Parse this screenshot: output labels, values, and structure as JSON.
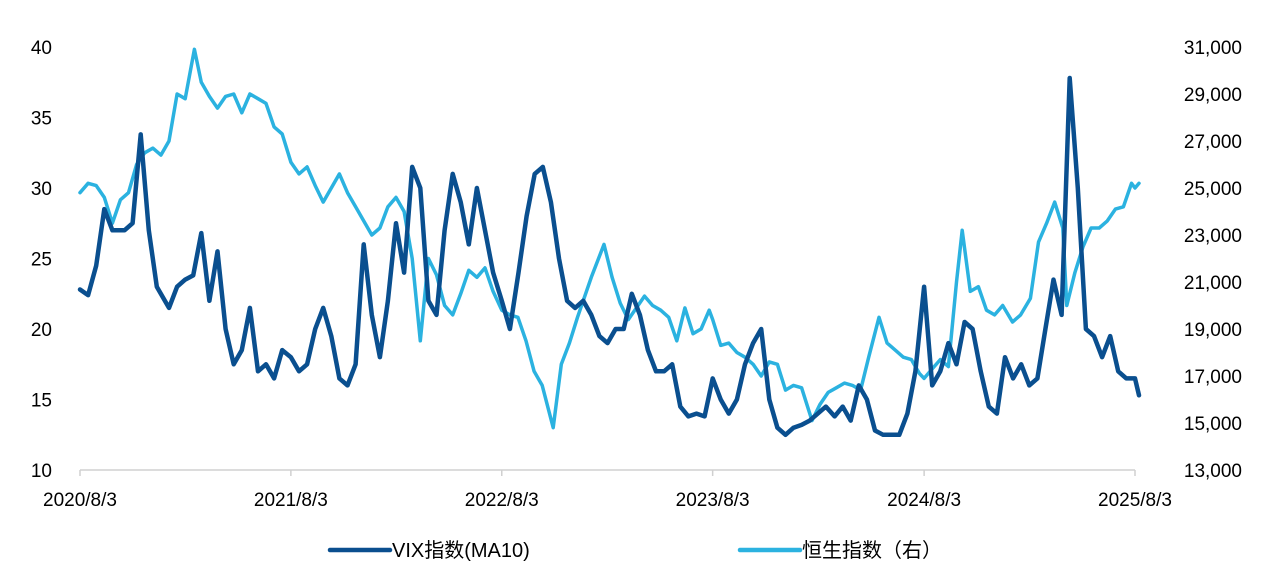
{
  "chart_data": {
    "type": "line",
    "x_tick_labels": [
      "2020/8/3",
      "2021/8/3",
      "2022/8/3",
      "2023/8/3",
      "2024/8/3",
      "2025/8/3"
    ],
    "y_left": {
      "range": [
        10,
        40
      ],
      "ticks": [
        "10",
        "15",
        "20",
        "25",
        "30",
        "35",
        "40"
      ]
    },
    "y_right": {
      "range": [
        13000,
        31000
      ],
      "ticks": [
        "13,000",
        "15,000",
        "17,000",
        "19,000",
        "21,000",
        "23,000",
        "25,000",
        "27,000",
        "29,000",
        "31,000"
      ]
    },
    "grid": false,
    "legend_position": "bottom",
    "series": [
      {
        "name": "VIX指数(MA10)",
        "axis": "left",
        "color": "#0a4f8f",
        "points": [
          [
            "2020/8/3",
            22.8
          ],
          [
            "2020/8/17",
            22.4
          ],
          [
            "2020/8/31",
            24.5
          ],
          [
            "2020/9/14",
            28.5
          ],
          [
            "2020/9/28",
            27.0
          ],
          [
            "2020/10/19",
            27.0
          ],
          [
            "2020/11/2",
            27.5
          ],
          [
            "2020/11/16",
            33.8
          ],
          [
            "2020/11/30",
            27.0
          ],
          [
            "2020/12/14",
            23.0
          ],
          [
            "2021/1/4",
            21.5
          ],
          [
            "2021/1/18",
            23.0
          ],
          [
            "2021/2/1",
            23.5
          ],
          [
            "2021/2/15",
            23.8
          ],
          [
            "2021/3/1",
            26.8
          ],
          [
            "2021/3/15",
            22.0
          ],
          [
            "2021/3/29",
            25.5
          ],
          [
            "2021/4/12",
            20.0
          ],
          [
            "2021/4/26",
            17.5
          ],
          [
            "2021/5/10",
            18.5
          ],
          [
            "2021/5/24",
            21.5
          ],
          [
            "2021/6/7",
            17.0
          ],
          [
            "2021/6/21",
            17.5
          ],
          [
            "2021/7/5",
            16.5
          ],
          [
            "2021/7/19",
            18.5
          ],
          [
            "2021/8/3",
            18.0
          ],
          [
            "2021/8/17",
            17.0
          ],
          [
            "2021/8/31",
            17.5
          ],
          [
            "2021/9/14",
            20.0
          ],
          [
            "2021/9/28",
            21.5
          ],
          [
            "2021/10/12",
            19.5
          ],
          [
            "2021/10/26",
            16.5
          ],
          [
            "2021/11/9",
            16.0
          ],
          [
            "2021/11/23",
            17.5
          ],
          [
            "2021/12/7",
            26.0
          ],
          [
            "2021/12/21",
            21.0
          ],
          [
            "2022/1/4",
            18.0
          ],
          [
            "2022/1/18",
            22.0
          ],
          [
            "2022/2/1",
            27.5
          ],
          [
            "2022/2/15",
            24.0
          ],
          [
            "2022/3/1",
            31.5
          ],
          [
            "2022/3/15",
            30.0
          ],
          [
            "2022/3/29",
            22.0
          ],
          [
            "2022/4/12",
            21.0
          ],
          [
            "2022/4/26",
            27.0
          ],
          [
            "2022/5/10",
            31.0
          ],
          [
            "2022/5/24",
            29.0
          ],
          [
            "2022/6/7",
            26.0
          ],
          [
            "2022/6/21",
            30.0
          ],
          [
            "2022/7/5",
            27.0
          ],
          [
            "2022/7/19",
            24.0
          ],
          [
            "2022/8/3",
            22.0
          ],
          [
            "2022/8/17",
            20.0
          ],
          [
            "2022/9/1",
            24.0
          ],
          [
            "2022/9/15",
            28.0
          ],
          [
            "2022/9/29",
            31.0
          ],
          [
            "2022/10/13",
            31.5
          ],
          [
            "2022/10/27",
            29.0
          ],
          [
            "2022/11/10",
            25.0
          ],
          [
            "2022/11/24",
            22.0
          ],
          [
            "2022/12/8",
            21.5
          ],
          [
            "2022/12/22",
            22.0
          ],
          [
            "2023/1/5",
            21.0
          ],
          [
            "2023/1/19",
            19.5
          ],
          [
            "2023/2/2",
            19.0
          ],
          [
            "2023/2/16",
            20.0
          ],
          [
            "2023/3/2",
            20.0
          ],
          [
            "2023/3/16",
            22.5
          ],
          [
            "2023/3/30",
            21.0
          ],
          [
            "2023/4/13",
            18.5
          ],
          [
            "2023/4/27",
            17.0
          ],
          [
            "2023/5/11",
            17.0
          ],
          [
            "2023/5/25",
            17.5
          ],
          [
            "2023/6/8",
            14.5
          ],
          [
            "2023/6/22",
            13.8
          ],
          [
            "2023/7/6",
            14.0
          ],
          [
            "2023/7/20",
            13.8
          ],
          [
            "2023/8/3",
            16.5
          ],
          [
            "2023/8/17",
            15.0
          ],
          [
            "2023/8/31",
            14.0
          ],
          [
            "2023/9/14",
            15.0
          ],
          [
            "2023/9/28",
            17.5
          ],
          [
            "2023/10/12",
            19.0
          ],
          [
            "2023/10/26",
            20.0
          ],
          [
            "2023/11/9",
            15.0
          ],
          [
            "2023/11/23",
            13.0
          ],
          [
            "2023/12/7",
            12.5
          ],
          [
            "2023/12/21",
            13.0
          ],
          [
            "2024/1/4",
            13.2
          ],
          [
            "2024/1/18",
            13.5
          ],
          [
            "2024/2/1",
            14.0
          ],
          [
            "2024/2/15",
            14.5
          ],
          [
            "2024/3/1",
            13.8
          ],
          [
            "2024/3/15",
            14.5
          ],
          [
            "2024/3/29",
            13.5
          ],
          [
            "2024/4/12",
            16.0
          ],
          [
            "2024/4/26",
            15.0
          ],
          [
            "2024/5/10",
            12.8
          ],
          [
            "2024/5/24",
            12.5
          ],
          [
            "2024/6/7",
            12.5
          ],
          [
            "2024/6/21",
            12.5
          ],
          [
            "2024/7/5",
            14.0
          ],
          [
            "2024/7/19",
            17.0
          ],
          [
            "2024/8/3",
            23.0
          ],
          [
            "2024/8/17",
            16.0
          ],
          [
            "2024/8/31",
            17.0
          ],
          [
            "2024/9/14",
            19.0
          ],
          [
            "2024/9/28",
            17.5
          ],
          [
            "2024/10/12",
            20.5
          ],
          [
            "2024/10/26",
            20.0
          ],
          [
            "2024/11/9",
            17.0
          ],
          [
            "2024/11/23",
            14.5
          ],
          [
            "2024/12/7",
            14.0
          ],
          [
            "2024/12/21",
            18.0
          ],
          [
            "2025/1/4",
            16.5
          ],
          [
            "2025/1/18",
            17.5
          ],
          [
            "2025/2/1",
            16.0
          ],
          [
            "2025/2/15",
            16.5
          ],
          [
            "2025/3/1",
            20.0
          ],
          [
            "2025/3/15",
            23.5
          ],
          [
            "2025/3/29",
            21.0
          ],
          [
            "2025/4/12",
            37.8
          ],
          [
            "2025/4/26",
            30.0
          ],
          [
            "2025/5/10",
            20.0
          ],
          [
            "2025/5/24",
            19.5
          ],
          [
            "2025/6/7",
            18.0
          ],
          [
            "2025/6/21",
            19.5
          ],
          [
            "2025/7/5",
            17.0
          ],
          [
            "2025/7/19",
            16.5
          ],
          [
            "2025/8/3",
            16.5
          ],
          [
            "2025/8/10",
            15.3
          ]
        ]
      },
      {
        "name": "恒生指数（右）",
        "axis": "right",
        "color": "#2bb2e0",
        "points": [
          [
            "2020/8/3",
            24800
          ],
          [
            "2020/8/17",
            25200
          ],
          [
            "2020/8/31",
            25100
          ],
          [
            "2020/9/14",
            24600
          ],
          [
            "2020/9/28",
            23500
          ],
          [
            "2020/10/12",
            24500
          ],
          [
            "2020/10/26",
            24800
          ],
          [
            "2020/11/9",
            26000
          ],
          [
            "2020/11/23",
            26500
          ],
          [
            "2020/12/7",
            26700
          ],
          [
            "2020/12/21",
            26400
          ],
          [
            "2021/1/4",
            27000
          ],
          [
            "2021/1/18",
            29000
          ],
          [
            "2021/2/1",
            28800
          ],
          [
            "2021/2/17",
            30900
          ],
          [
            "2021/3/1",
            29500
          ],
          [
            "2021/3/15",
            28900
          ],
          [
            "2021/3/29",
            28400
          ],
          [
            "2021/4/12",
            28900
          ],
          [
            "2021/4/26",
            29000
          ],
          [
            "2021/5/10",
            28200
          ],
          [
            "2021/5/24",
            29000
          ],
          [
            "2021/6/7",
            28800
          ],
          [
            "2021/6/21",
            28600
          ],
          [
            "2021/7/5",
            27600
          ],
          [
            "2021/7/19",
            27300
          ],
          [
            "2021/8/3",
            26100
          ],
          [
            "2021/8/17",
            25600
          ],
          [
            "2021/8/31",
            25900
          ],
          [
            "2021/9/14",
            25100
          ],
          [
            "2021/9/28",
            24400
          ],
          [
            "2021/10/12",
            25000
          ],
          [
            "2021/10/26",
            25600
          ],
          [
            "2021/11/9",
            24800
          ],
          [
            "2021/11/23",
            24200
          ],
          [
            "2021/12/7",
            23600
          ],
          [
            "2021/12/21",
            23000
          ],
          [
            "2022/1/4",
            23300
          ],
          [
            "2022/1/18",
            24200
          ],
          [
            "2022/2/1",
            24600
          ],
          [
            "2022/2/15",
            24000
          ],
          [
            "2022/3/1",
            22000
          ],
          [
            "2022/3/15",
            18500
          ],
          [
            "2022/3/29",
            22000
          ],
          [
            "2022/4/12",
            21300
          ],
          [
            "2022/4/26",
            20000
          ],
          [
            "2022/5/10",
            19600
          ],
          [
            "2022/5/24",
            20500
          ],
          [
            "2022/6/7",
            21500
          ],
          [
            "2022/6/21",
            21200
          ],
          [
            "2022/7/5",
            21600
          ],
          [
            "2022/7/19",
            20600
          ],
          [
            "2022/8/3",
            19800
          ],
          [
            "2022/8/17",
            19600
          ],
          [
            "2022/8/31",
            19500
          ],
          [
            "2022/9/14",
            18500
          ],
          [
            "2022/9/28",
            17200
          ],
          [
            "2022/10/12",
            16600
          ],
          [
            "2022/10/31",
            14800
          ],
          [
            "2022/11/14",
            17500
          ],
          [
            "2022/11/28",
            18400
          ],
          [
            "2022/12/12",
            19500
          ],
          [
            "2023/1/5",
            21200
          ],
          [
            "2023/1/27",
            22600
          ],
          [
            "2023/2/10",
            21200
          ],
          [
            "2023/2/24",
            20100
          ],
          [
            "2023/3/10",
            19400
          ],
          [
            "2023/3/24",
            19900
          ],
          [
            "2023/4/7",
            20400
          ],
          [
            "2023/4/21",
            20000
          ],
          [
            "2023/5/5",
            19800
          ],
          [
            "2023/5/19",
            19500
          ],
          [
            "2023/6/2",
            18500
          ],
          [
            "2023/6/16",
            19900
          ],
          [
            "2023/6/30",
            18800
          ],
          [
            "2023/7/14",
            19000
          ],
          [
            "2023/7/28",
            19800
          ],
          [
            "2023/8/3",
            19400
          ],
          [
            "2023/8/17",
            18300
          ],
          [
            "2023/8/31",
            18400
          ],
          [
            "2023/9/14",
            18000
          ],
          [
            "2023/9/28",
            17800
          ],
          [
            "2023/10/12",
            17500
          ],
          [
            "2023/10/26",
            17000
          ],
          [
            "2023/11/9",
            17600
          ],
          [
            "2023/11/23",
            17500
          ],
          [
            "2023/12/7",
            16400
          ],
          [
            "2023/12/21",
            16600
          ],
          [
            "2024/1/4",
            16500
          ],
          [
            "2024/1/22",
            15100
          ],
          [
            "2024/2/5",
            15800
          ],
          [
            "2024/2/19",
            16300
          ],
          [
            "2024/3/4",
            16500
          ],
          [
            "2024/3/18",
            16700
          ],
          [
            "2024/4/1",
            16600
          ],
          [
            "2024/4/15",
            16400
          ],
          [
            "2024/4/29",
            17800
          ],
          [
            "2024/5/17",
            19500
          ],
          [
            "2024/5/31",
            18400
          ],
          [
            "2024/6/14",
            18100
          ],
          [
            "2024/6/28",
            17800
          ],
          [
            "2024/7/12",
            17700
          ],
          [
            "2024/7/26",
            17100
          ],
          [
            "2024/8/3",
            16900
          ],
          [
            "2024/8/17",
            17300
          ],
          [
            "2024/8/31",
            17700
          ],
          [
            "2024/9/14",
            17400
          ],
          [
            "2024/9/28",
            21000
          ],
          [
            "2024/10/8",
            23200
          ],
          [
            "2024/10/22",
            20600
          ],
          [
            "2024/11/5",
            20800
          ],
          [
            "2024/11/19",
            19800
          ],
          [
            "2024/12/3",
            19600
          ],
          [
            "2024/12/17",
            20000
          ],
          [
            "2025/1/3",
            19300
          ],
          [
            "2025/1/17",
            19600
          ],
          [
            "2025/2/3",
            20300
          ],
          [
            "2025/2/17",
            22700
          ],
          [
            "2025/3/3",
            23500
          ],
          [
            "2025/3/17",
            24400
          ],
          [
            "2025/3/31",
            23300
          ],
          [
            "2025/4/7",
            20000
          ],
          [
            "2025/4/21",
            21400
          ],
          [
            "2025/5/5",
            22500
          ],
          [
            "2025/5/19",
            23300
          ],
          [
            "2025/6/2",
            23300
          ],
          [
            "2025/6/16",
            23600
          ],
          [
            "2025/6/30",
            24100
          ],
          [
            "2025/7/14",
            24200
          ],
          [
            "2025/7/28",
            25200
          ],
          [
            "2025/8/3",
            25000
          ],
          [
            "2025/8/10",
            25200
          ]
        ]
      }
    ]
  }
}
